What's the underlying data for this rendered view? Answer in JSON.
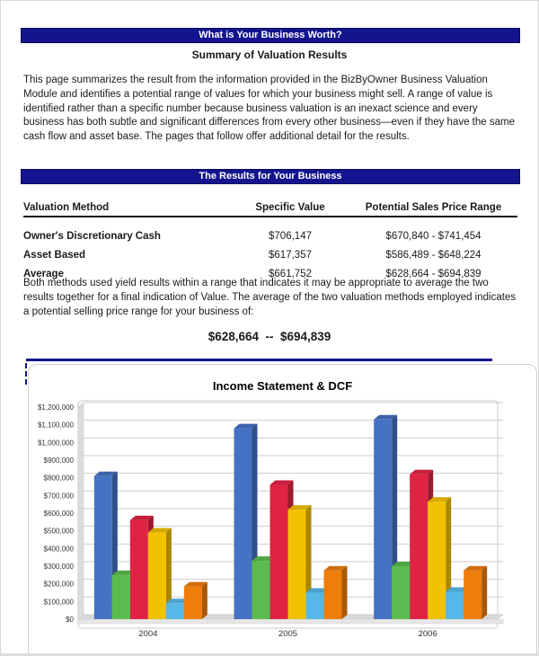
{
  "page": {
    "banner1": "What is Your Business Worth?",
    "subtitle": "Summary of Valuation Results",
    "intro": "This page summarizes the result from the information provided in the BizByOwner Business Valuation Module and identifies a potential range of values for which your business might sell.  A range of value is identified rather than a specific number because business valuation is an inexact science and every business has both subtle and significant differences from every other business—even if they have the same cash flow and asset base.  The pages that follow offer additional detail for the results.",
    "banner2": "The Results for Your Business",
    "table": {
      "headers": [
        "Valuation Method",
        "Specific Value",
        "Potential Sales Price Range"
      ],
      "rows": [
        {
          "method": "Owner's Discretionary Cash",
          "value": "$706,147",
          "range": "$670,840 - $741,454"
        },
        {
          "method": "Asset Based",
          "value": "$617,357",
          "range": "$586,489 - $648,224"
        },
        {
          "method": "Average",
          "value": "$661,752",
          "range": "$628,664 - $694,839"
        }
      ]
    },
    "conclusion": "Both methods used yield results within a range that indicates it may be appropriate to average the two results together for a final indication of Value. The average of the two valuation methods employed indicates a potential selling price range for your business of:",
    "final_range": "$628,664  --  $694,839"
  },
  "colors": {
    "banner_bg": "#14148F",
    "banner_text": "#FFFFFF",
    "rule_blue": "#14148F"
  },
  "chart_data": {
    "type": "bar",
    "style": "3d-clustered",
    "title": "Income Statement & DCF",
    "categories": [
      "2004",
      "2005",
      "2006"
    ],
    "series": [
      {
        "name": "blue",
        "color": "#4472C4",
        "values": [
          810000,
          1080000,
          1130000
        ]
      },
      {
        "name": "green",
        "color": "#5BBB4E",
        "values": [
          250000,
          330000,
          300000
        ]
      },
      {
        "name": "red",
        "color": "#E02344",
        "values": [
          560000,
          760000,
          820000
        ]
      },
      {
        "name": "yellow",
        "color": "#F2C100",
        "values": [
          490000,
          620000,
          665000
        ]
      },
      {
        "name": "light-blue",
        "color": "#55B8E8",
        "values": [
          90000,
          150000,
          155000
        ]
      },
      {
        "name": "orange",
        "color": "#EE7D0C",
        "values": [
          185000,
          275000,
          275000
        ]
      }
    ],
    "ylim": [
      0,
      1200000
    ],
    "ytick_step": 100000,
    "ytick_labels": [
      "$0",
      "$100,000",
      "$200,000",
      "$300,000",
      "$400,000",
      "$500,000",
      "$600,000",
      "$700,000",
      "$800,000",
      "$900,000",
      "$1,000,000",
      "$1,100,000",
      "$1,200,000"
    ],
    "xlabel": "",
    "ylabel": "",
    "grid": true,
    "legend_position": "none-visible (cut off at bottom)"
  }
}
